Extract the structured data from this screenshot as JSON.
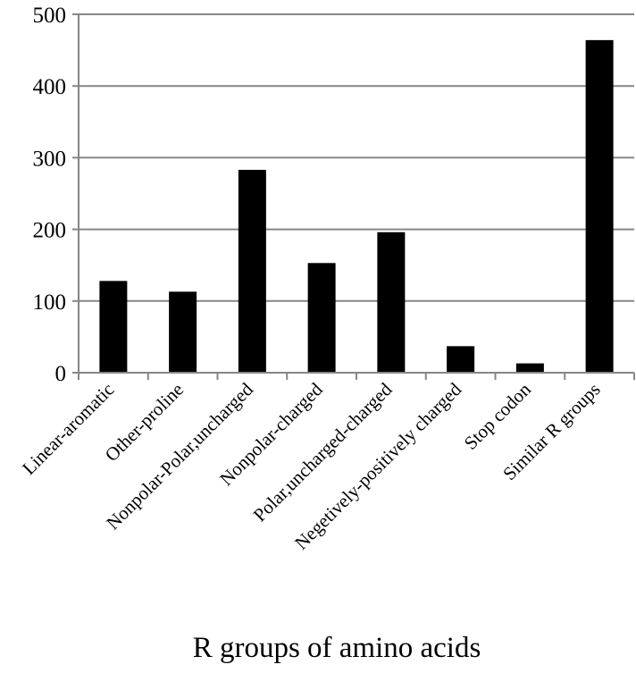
{
  "chart_data": {
    "type": "bar",
    "title": "",
    "xlabel": "R groups of amino acids",
    "ylabel": "",
    "ylim": [
      0,
      500
    ],
    "yticks": [
      0,
      100,
      200,
      300,
      400,
      500
    ],
    "grid": true,
    "legend": "none",
    "categories": [
      "Linear-aromatic",
      "Other-proline",
      "Nonpolar-Polar,uncharged",
      "Nonpolar-charged",
      "Polar,uncharged-charged",
      "Negetively-positively charged",
      "Stop codon",
      "Similar R groups"
    ],
    "values": [
      128,
      113,
      283,
      153,
      196,
      37,
      13,
      464
    ],
    "bar_color": "#000000",
    "grid_color": "#868686",
    "axis_color": "#868686"
  }
}
